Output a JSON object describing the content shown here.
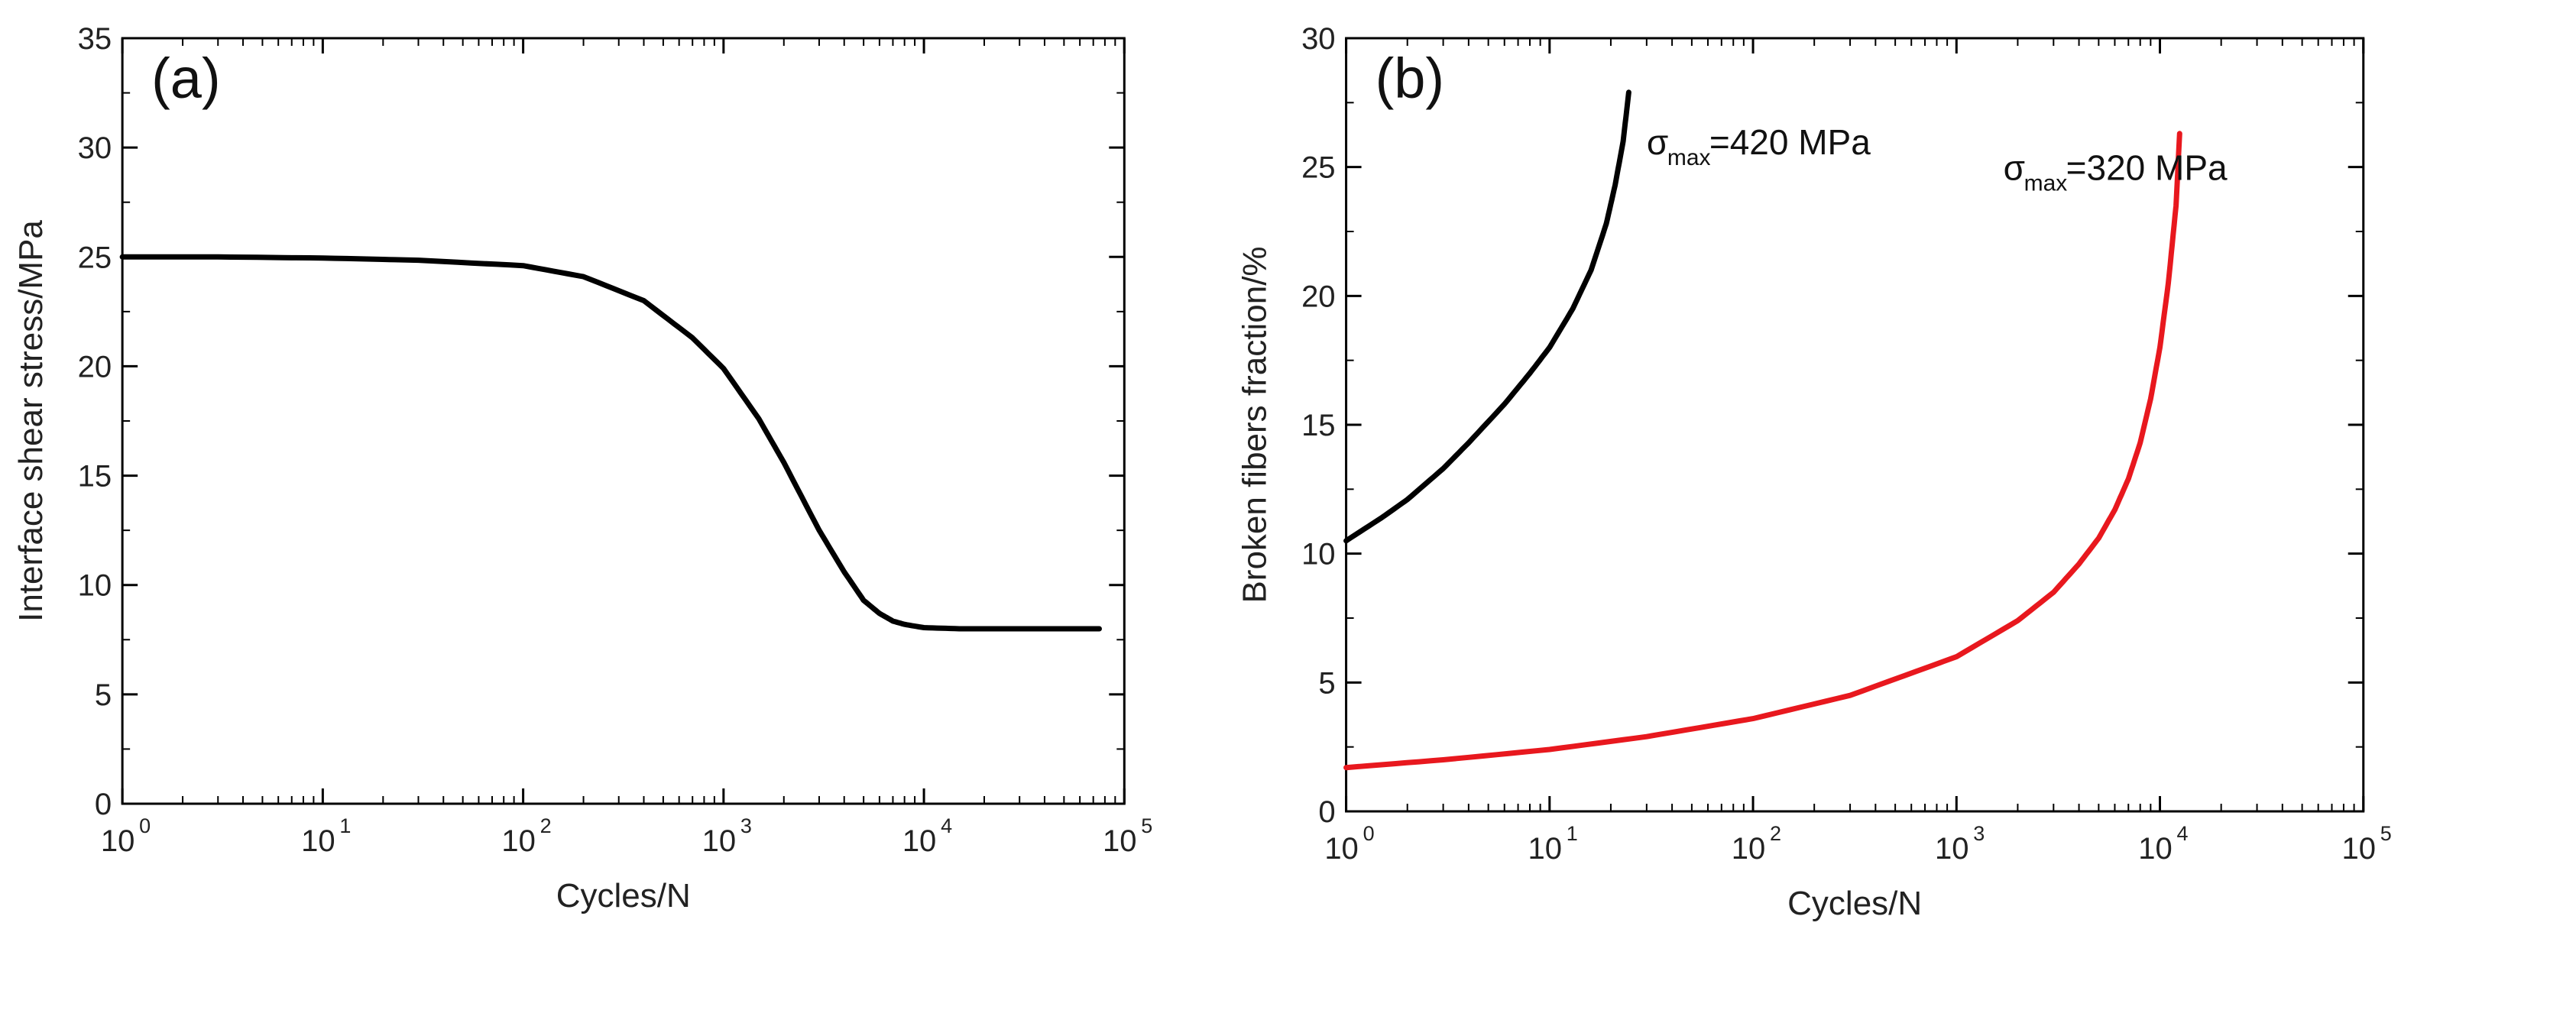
{
  "chart_data": [
    {
      "type": "line",
      "panel_label": "(a)",
      "xlabel": "Cycles/N",
      "ylabel": "Interface shear stress/MPa",
      "xscale": "log",
      "xlim": [
        1,
        100000
      ],
      "ylim": [
        0,
        35
      ],
      "yticks": [
        "0",
        "5",
        "10",
        "15",
        "20",
        "25",
        "30",
        "35"
      ],
      "xticks": [
        {
          "base": "10",
          "exp": "0"
        },
        {
          "base": "10",
          "exp": "1"
        },
        {
          "base": "10",
          "exp": "2"
        },
        {
          "base": "10",
          "exp": "3"
        },
        {
          "base": "10",
          "exp": "4"
        },
        {
          "base": "10",
          "exp": "5"
        }
      ],
      "series": [
        {
          "name": "interface shear stress",
          "color": "#000000",
          "x": [
            1,
            3,
            10,
            30,
            100,
            200,
            400,
            700,
            1000,
            1500,
            2000,
            3000,
            4000,
            5000,
            6000,
            7000,
            8000,
            10000,
            15000,
            30000,
            75000
          ],
          "y": [
            25.0,
            25.0,
            24.95,
            24.85,
            24.6,
            24.1,
            23.0,
            21.3,
            19.9,
            17.6,
            15.6,
            12.5,
            10.6,
            9.3,
            8.7,
            8.35,
            8.2,
            8.05,
            8.0,
            8.0,
            8.0
          ]
        }
      ]
    },
    {
      "type": "line",
      "panel_label": "(b)",
      "xlabel": "Cycles/N",
      "ylabel": "Broken fibers fraction/%",
      "xscale": "log",
      "xlim": [
        1,
        100000
      ],
      "ylim": [
        0,
        30
      ],
      "yticks": [
        "0",
        "5",
        "10",
        "15",
        "20",
        "25",
        "30"
      ],
      "xticks": [
        {
          "base": "10",
          "exp": "0"
        },
        {
          "base": "10",
          "exp": "1"
        },
        {
          "base": "10",
          "exp": "2"
        },
        {
          "base": "10",
          "exp": "3"
        },
        {
          "base": "10",
          "exp": "4"
        },
        {
          "base": "10",
          "exp": "5"
        }
      ],
      "series": [
        {
          "name": "σmax=420 MPa",
          "color": "#000000",
          "x": [
            1,
            1.5,
            2,
            3,
            4,
            6,
            8,
            10,
            13,
            16,
            19,
            21,
            23,
            24.5
          ],
          "y": [
            10.5,
            11.4,
            12.1,
            13.3,
            14.3,
            15.8,
            17.0,
            18.0,
            19.5,
            21.0,
            22.8,
            24.3,
            26.0,
            27.9
          ]
        },
        {
          "name": "σmax=320 MPa",
          "color": "#e8181e",
          "x": [
            1,
            3,
            10,
            30,
            100,
            300,
            1000,
            2000,
            3000,
            4000,
            5000,
            6000,
            7000,
            8000,
            9000,
            10000,
            11000,
            12000,
            12500
          ],
          "y": [
            1.7,
            2.0,
            2.4,
            2.9,
            3.6,
            4.5,
            6.0,
            7.4,
            8.5,
            9.6,
            10.6,
            11.7,
            12.9,
            14.3,
            16.0,
            18.0,
            20.5,
            23.5,
            26.3
          ]
        }
      ],
      "annotations": [
        {
          "symbol": "σ",
          "sub": "max",
          "text": "=420 MPa"
        },
        {
          "symbol": "σ",
          "sub": "max",
          "text": "=320 MPa"
        }
      ]
    }
  ]
}
